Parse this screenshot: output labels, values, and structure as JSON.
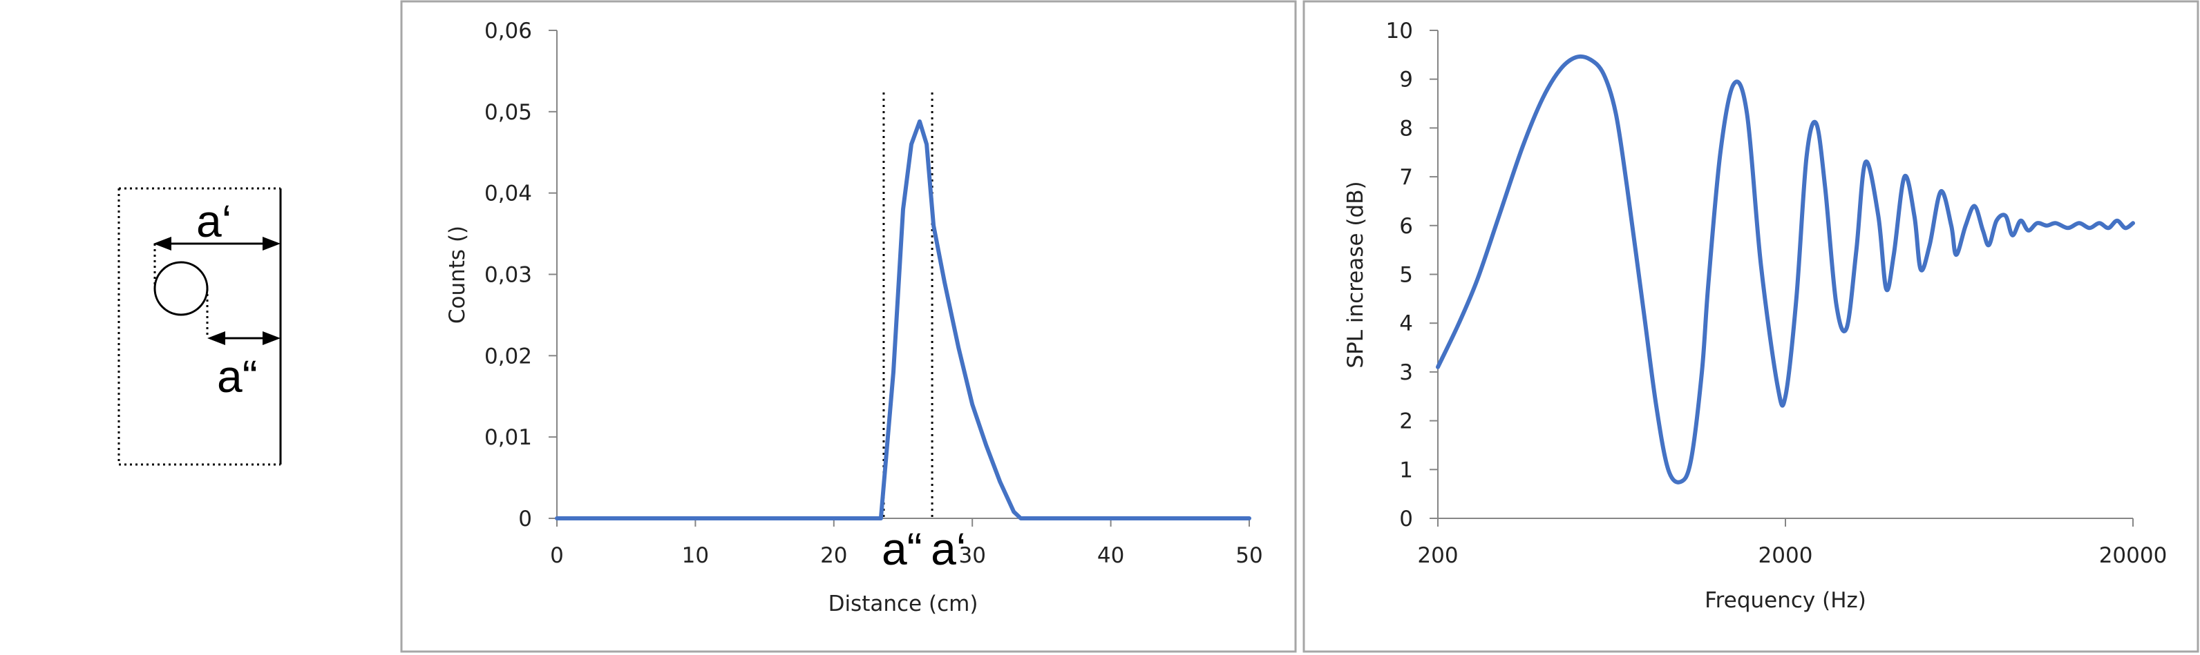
{
  "diagram": {
    "labels": [
      "a‘",
      "a“"
    ]
  },
  "chart_data": [
    {
      "type": "line",
      "title": "",
      "xlabel": "Distance (cm)",
      "ylabel": "Counts ()",
      "xlim": [
        0,
        50
      ],
      "ylim": [
        0,
        0.06
      ],
      "xticks": [
        "0",
        "10",
        "20",
        "30",
        "40",
        "50"
      ],
      "yticks": [
        "0",
        "0,01",
        "0,02",
        "0,03",
        "0,04",
        "0,05",
        "0,06"
      ],
      "grid": false,
      "line_color": "#4472C4",
      "series": [
        {
          "x": [
            0,
            23.4,
            24.3,
            25,
            25.6,
            26.2,
            26.7,
            27.2,
            28,
            29,
            30,
            31,
            32,
            33,
            33.5,
            50
          ],
          "values": [
            0,
            0,
            0.018,
            0.038,
            0.046,
            0.0488,
            0.046,
            0.036,
            0.029,
            0.021,
            0.014,
            0.009,
            0.0045,
            0.0008,
            0,
            0
          ]
        }
      ],
      "markers": [
        {
          "x": 23.6,
          "label": "a“"
        },
        {
          "x": 27.1,
          "label": "a‘"
        }
      ]
    },
    {
      "type": "line",
      "title": "",
      "xlabel": "Frequency (Hz)",
      "ylabel": "SPL increase (dB)",
      "xscale": "log",
      "xlim": [
        200,
        20000
      ],
      "ylim": [
        0,
        10
      ],
      "xticks": [
        "200",
        "2000",
        "20000"
      ],
      "yticks": [
        "0",
        "1",
        "2",
        "3",
        "4",
        "5",
        "6",
        "7",
        "8",
        "9",
        "10"
      ],
      "grid": false,
      "line_color": "#4472C4",
      "series": [
        {
          "x": [
            200,
            230,
            260,
            300,
            350,
            400,
            450,
            500,
            550,
            600,
            650,
            700,
            780,
            850,
            920,
            1000,
            1070,
            1150,
            1200,
            1300,
            1420,
            1550,
            1700,
            1900,
            2000,
            2150,
            2300,
            2450,
            2600,
            2800,
            3000,
            3200,
            3400,
            3700,
            3900,
            4100,
            4400,
            4700,
            4900,
            5200,
            5600,
            6000,
            6200,
            6600,
            7000,
            7400,
            7700,
            8100,
            8600,
            9000,
            9500,
            10000,
            10600,
            11300,
            12000,
            13000,
            14000,
            15000,
            16000,
            17000,
            18000,
            19000,
            20000
          ],
          "values": [
            3.1,
            4.0,
            4.9,
            6.2,
            7.6,
            8.6,
            9.2,
            9.45,
            9.4,
            9.1,
            8.3,
            6.8,
            4.3,
            2.3,
            1.0,
            0.75,
            1.2,
            3.0,
            4.8,
            7.5,
            8.9,
            8.3,
            5.2,
            2.7,
            2.5,
            4.5,
            7.4,
            8.1,
            6.8,
            4.4,
            3.9,
            5.5,
            7.3,
            6.2,
            4.7,
            5.4,
            7.0,
            6.2,
            5.1,
            5.6,
            6.7,
            6.0,
            5.4,
            6.0,
            6.4,
            5.9,
            5.6,
            6.1,
            6.2,
            5.8,
            6.1,
            5.9,
            6.05,
            6.0,
            6.05,
            5.95,
            6.05,
            5.95,
            6.05,
            5.95,
            6.1,
            5.95,
            6.05
          ]
        }
      ]
    }
  ]
}
